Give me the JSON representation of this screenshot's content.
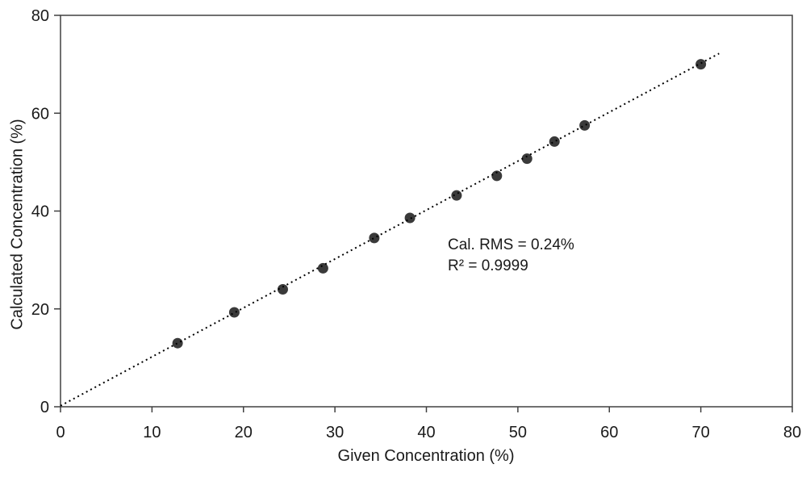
{
  "chart_data": {
    "type": "scatter",
    "title": "",
    "xlabel": "Given Concentration (%)",
    "ylabel": "Calculated Concentration (%)",
    "xlim": [
      0,
      80
    ],
    "ylim": [
      0,
      80
    ],
    "xticks": [
      0,
      10,
      20,
      30,
      40,
      50,
      60,
      70,
      80
    ],
    "yticks": [
      0,
      20,
      40,
      60,
      80
    ],
    "grid": false,
    "legend": "none",
    "series": [
      {
        "name": "calibration-points",
        "marker": "circle",
        "color": "#3a3a3a",
        "points": [
          [
            12.8,
            13.0
          ],
          [
            19.0,
            19.3
          ],
          [
            24.3,
            24.0
          ],
          [
            28.7,
            28.3
          ],
          [
            34.3,
            34.5
          ],
          [
            38.2,
            38.6
          ],
          [
            43.3,
            43.2
          ],
          [
            47.7,
            47.2
          ],
          [
            51.0,
            50.7
          ],
          [
            54.0,
            54.2
          ],
          [
            57.3,
            57.5
          ],
          [
            70.0,
            70.0
          ]
        ]
      }
    ],
    "trendline": {
      "style": "dotted",
      "color": "#000000",
      "x1": 0,
      "y1": 0.2,
      "x2": 72,
      "y2": 72.2
    },
    "annotations": [
      "Cal. RMS = 0.24%",
      "R² = 0.9999"
    ],
    "colors": {
      "axis": "#404040",
      "text": "#1a1a1a",
      "background": "#ffffff"
    }
  }
}
